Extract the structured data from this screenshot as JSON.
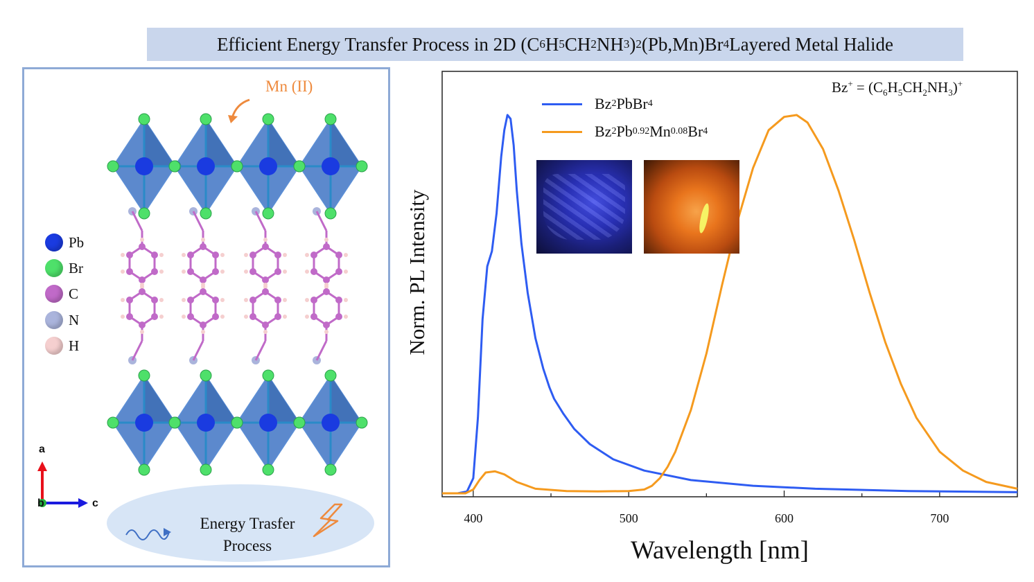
{
  "title": {
    "prefix": "Efficient Energy Transfer Process in 2D (C",
    "s1": "6",
    "t1": "H",
    "s2": "5",
    "t2": "CH",
    "s3": "2",
    "t3": "NH",
    "s4": "3",
    "t4": ")",
    "s5": "2",
    "t5": "(Pb,Mn)Br",
    "s6": "4",
    "t6": " Layered Metal Halide"
  },
  "structure": {
    "mn_label": "Mn (II)",
    "legend": [
      {
        "label": "Pb",
        "color": "#1a3be0"
      },
      {
        "label": "Br",
        "color": "#4ee06a"
      },
      {
        "label": "C",
        "color": "#c06ac8"
      },
      {
        "label": "N",
        "color": "#aab4dc"
      },
      {
        "label": "H",
        "color": "#f5cfcf"
      }
    ],
    "axes": {
      "a": "a",
      "b": "b",
      "c": "c"
    },
    "energy_line1": "Energy Trasfer",
    "energy_line2": "Process"
  },
  "chart_data": {
    "type": "line",
    "xlabel": "Wavelength [nm]",
    "ylabel": "Norm. PL Intensity",
    "xlim": [
      380,
      750
    ],
    "ylim": [
      0,
      1.0
    ],
    "xticks": [
      400,
      500,
      600,
      700
    ],
    "annotation": {
      "a": "Bz",
      "b": "+",
      "c": " = (C",
      "d": "6",
      "e": "H",
      "f": "5",
      "g": "CH",
      "h": "2",
      "i": "NH",
      "j": "3",
      "k": ")",
      "l": "+"
    },
    "series": [
      {
        "name": "Bz2PbBr4",
        "legend": {
          "a": "Bz",
          "b": "2",
          "c": "PbBr",
          "d": "4"
        },
        "color": "#2e5cf2",
        "x": [
          380,
          390,
          396,
          400,
          403,
          406,
          409,
          412,
          415,
          418,
          420,
          422,
          424,
          426,
          428,
          431,
          435,
          440,
          445,
          449,
          452,
          458,
          465,
          475,
          490,
          510,
          540,
          580,
          620,
          680,
          750
        ],
        "y": [
          0.0,
          0.0,
          0.005,
          0.04,
          0.2,
          0.46,
          0.6,
          0.64,
          0.74,
          0.89,
          0.96,
          1.0,
          0.99,
          0.92,
          0.8,
          0.66,
          0.53,
          0.41,
          0.33,
          0.28,
          0.25,
          0.21,
          0.17,
          0.13,
          0.09,
          0.06,
          0.035,
          0.02,
          0.012,
          0.006,
          0.003
        ]
      },
      {
        "name": "Bz2Pb0.92Mn0.08Br4",
        "legend": {
          "a": "Bz",
          "b": "2",
          "c": "Pb",
          "d": "0.92",
          "e": "Mn",
          "f": "0.08",
          "g": "Br",
          "h": "4"
        },
        "color": "#f59a1e",
        "x": [
          380,
          395,
          400,
          404,
          408,
          414,
          420,
          428,
          440,
          460,
          480,
          500,
          510,
          515,
          520,
          525,
          530,
          540,
          550,
          560,
          570,
          580,
          590,
          600,
          608,
          615,
          625,
          635,
          645,
          655,
          665,
          675,
          685,
          700,
          715,
          730,
          750
        ],
        "y": [
          0.0,
          0.0,
          0.01,
          0.035,
          0.055,
          0.058,
          0.05,
          0.03,
          0.012,
          0.006,
          0.005,
          0.006,
          0.01,
          0.02,
          0.04,
          0.07,
          0.11,
          0.22,
          0.37,
          0.55,
          0.72,
          0.86,
          0.96,
          0.995,
          1.0,
          0.98,
          0.91,
          0.8,
          0.67,
          0.53,
          0.4,
          0.29,
          0.2,
          0.11,
          0.06,
          0.03,
          0.012
        ]
      }
    ]
  }
}
